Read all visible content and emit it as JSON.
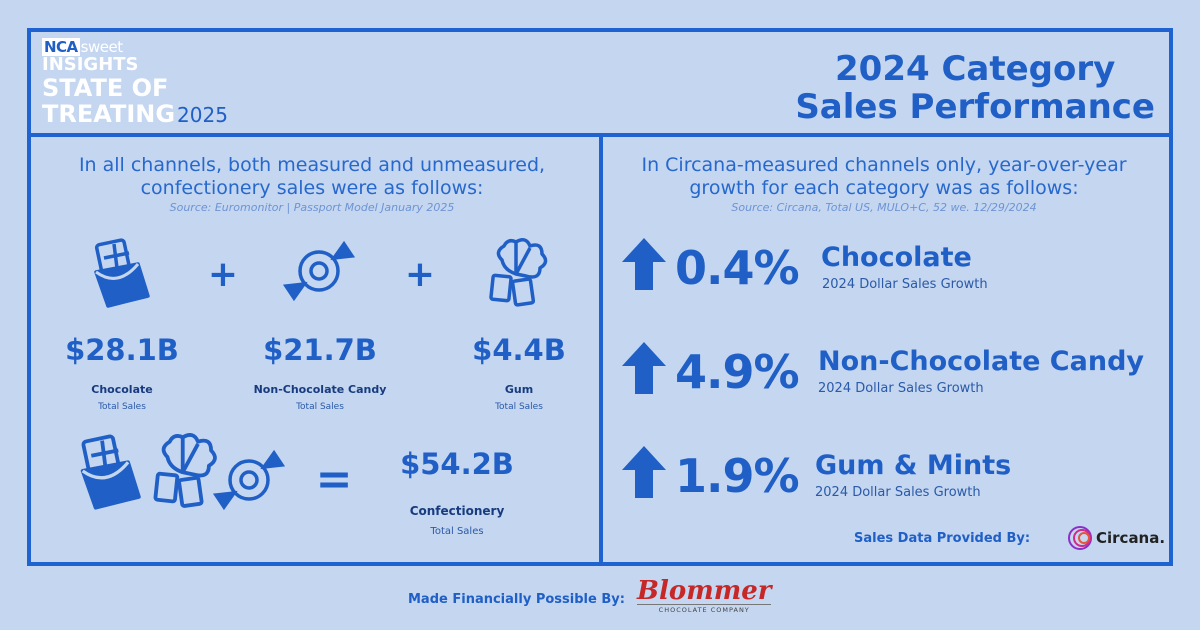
{
  "logo": {
    "nca": "NCA",
    "sweet": "sweet",
    "insights": "INSIGHTS",
    "line1": "STATE OF",
    "line2": "TREATING",
    "year": "2025"
  },
  "title": {
    "line1": "2024 Category",
    "line2": "Sales Performance"
  },
  "left": {
    "intro_line1": "In all channels, both measured and unmeasured,",
    "intro_line2": "confectionery sales were as follows:",
    "source": "Source: Euromonitor | Passport Model January 2025",
    "plus": "+",
    "equals": "=",
    "items": [
      {
        "amount": "$28.1B",
        "name": "Chocolate",
        "sub": "Total Sales",
        "icon": "chocolate-bar-icon"
      },
      {
        "amount": "$21.7B",
        "name": "Non-Chocolate Candy",
        "sub": "Total Sales",
        "icon": "wrapped-candy-icon"
      },
      {
        "amount": "$4.4B",
        "name": "Gum",
        "sub": "Total Sales",
        "icon": "gum-mint-icon"
      }
    ],
    "total": {
      "amount": "$54.2B",
      "name": "Confectionery",
      "sub": "Total Sales"
    }
  },
  "right": {
    "intro_line1": "In Circana-measured channels only, year-over-year",
    "intro_line2": "growth for each category was as follows:",
    "source": "Source: Circana, Total US, MULO+C, 52 we. 12/29/2024",
    "growth": [
      {
        "pct": "0.4%",
        "name": "Chocolate",
        "sub": "2024 Dollar Sales Growth"
      },
      {
        "pct": "4.9%",
        "name": "Non-Chocolate Candy",
        "sub": "2024 Dollar Sales Growth"
      },
      {
        "pct": "1.9%",
        "name": "Gum & Mints",
        "sub": "2024 Dollar Sales Growth"
      }
    ],
    "provided_label": "Sales Data Provided By:",
    "provider": "Circana."
  },
  "footer": {
    "label": "Made Financially Possible By:",
    "sponsor": "Blommer",
    "sponsor_tag": "CHOCOLATE COMPANY"
  },
  "colors": {
    "background": "#c4d6f0",
    "accent": "#1f63d0",
    "sponsor": "#c62828"
  }
}
